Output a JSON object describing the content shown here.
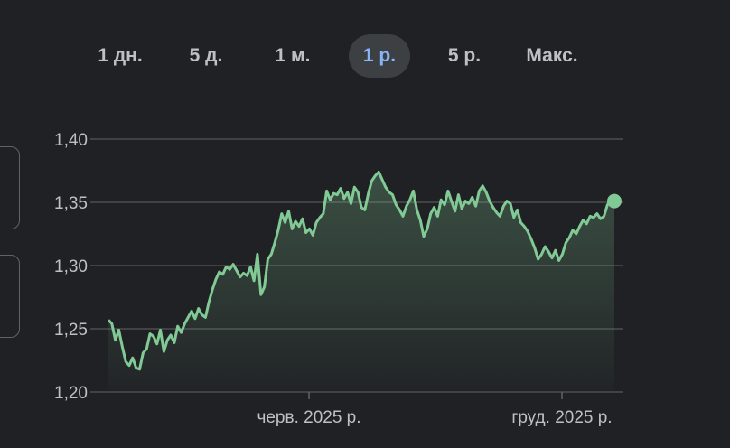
{
  "range_tabs": [
    {
      "label": "1 дн.",
      "active": false
    },
    {
      "label": "5 д.",
      "active": false
    },
    {
      "label": "1 м.",
      "active": false
    },
    {
      "label": "1 р.",
      "active": true
    },
    {
      "label": "5 р.",
      "active": false
    },
    {
      "label": "Макс.",
      "active": false
    }
  ],
  "colors": {
    "background": "#202124",
    "line": "#81c995",
    "active_tab_bg": "#3c4043",
    "active_tab_text": "#8ab4f8",
    "tab_text": "#bdc1c6",
    "grid": "#5f6368"
  },
  "chart_data": {
    "type": "line",
    "title": "",
    "xlabel": "",
    "ylabel": "",
    "ylim": [
      1.2,
      1.4
    ],
    "y_ticks": [
      "1,40",
      "1,35",
      "1,30",
      "1,25",
      "1,20"
    ],
    "x_ticks": [
      {
        "label": "черв. 2025 р.",
        "t": 0.4
      },
      {
        "label": "груд. 2025 р.",
        "t": 0.9
      }
    ],
    "grid": true,
    "series": [
      {
        "values": [
          1.257,
          1.254,
          1.241,
          1.249,
          1.236,
          1.224,
          1.221,
          1.227,
          1.219,
          1.218,
          1.231,
          1.234,
          1.246,
          1.244,
          1.238,
          1.249,
          1.232,
          1.241,
          1.245,
          1.239,
          1.252,
          1.247,
          1.254,
          1.259,
          1.264,
          1.258,
          1.266,
          1.261,
          1.259,
          1.271,
          1.281,
          1.289,
          1.295,
          1.293,
          1.299,
          1.297,
          1.301,
          1.296,
          1.291,
          1.294,
          1.292,
          1.299,
          1.288,
          1.309,
          1.277,
          1.283,
          1.305,
          1.309,
          1.318,
          1.328,
          1.341,
          1.334,
          1.343,
          1.329,
          1.335,
          1.331,
          1.337,
          1.326,
          1.329,
          1.324,
          1.334,
          1.338,
          1.341,
          1.359,
          1.352,
          1.357,
          1.356,
          1.361,
          1.353,
          1.358,
          1.349,
          1.362,
          1.358,
          1.346,
          1.344,
          1.357,
          1.367,
          1.371,
          1.374,
          1.368,
          1.362,
          1.358,
          1.356,
          1.348,
          1.344,
          1.339,
          1.347,
          1.352,
          1.359,
          1.344,
          1.336,
          1.323,
          1.329,
          1.341,
          1.346,
          1.339,
          1.352,
          1.348,
          1.359,
          1.351,
          1.343,
          1.356,
          1.345,
          1.351,
          1.349,
          1.354,
          1.347,
          1.359,
          1.363,
          1.358,
          1.351,
          1.346,
          1.342,
          1.339,
          1.347,
          1.351,
          1.349,
          1.338,
          1.344,
          1.334,
          1.331,
          1.327,
          1.321,
          1.314,
          1.305,
          1.309,
          1.315,
          1.311,
          1.306,
          1.312,
          1.304,
          1.309,
          1.318,
          1.322,
          1.328,
          1.325,
          1.331,
          1.336,
          1.333,
          1.339,
          1.338,
          1.341,
          1.337,
          1.339,
          1.348,
          1.352,
          1.351
        ]
      }
    ]
  }
}
